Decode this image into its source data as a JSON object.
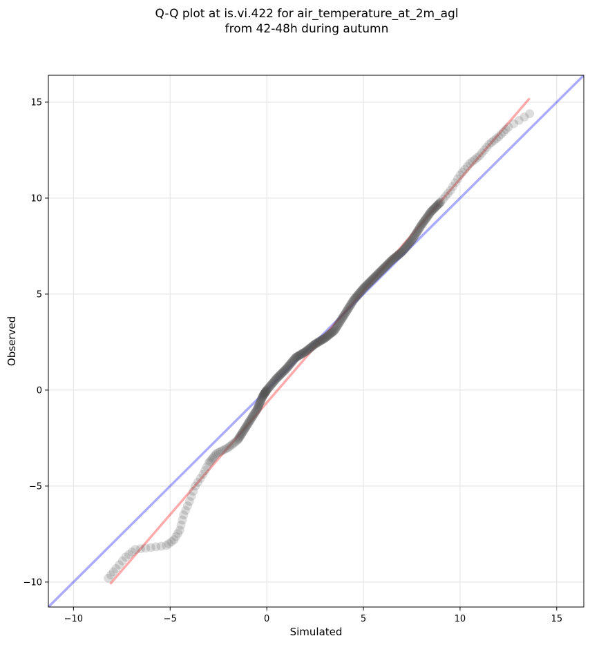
{
  "chart_data": {
    "type": "scatter",
    "title_lines": [
      "Q-Q plot at is.vi.422 for air_temperature_at_2m_agl",
      "from 42-48h during autumn"
    ],
    "xlabel": "Simulated",
    "ylabel": "Observed",
    "xlim": [
      -11.3,
      16.4
    ],
    "ylim": [
      -11.3,
      16.4
    ],
    "xticks": [
      -10,
      -5,
      0,
      5,
      10,
      15
    ],
    "yticks": [
      -10,
      -5,
      0,
      5,
      10,
      15
    ],
    "xtick_labels": [
      "−10",
      "−5",
      "0",
      "5",
      "10",
      "15"
    ],
    "ytick_labels": [
      "−10",
      "−5",
      "0",
      "5",
      "10",
      "15"
    ],
    "grid": true,
    "point_color": "#555555",
    "identity_line": {
      "color": "#0000ff",
      "x": [
        -11.3,
        16.4
      ],
      "y": [
        -11.3,
        16.4
      ]
    },
    "fit_line": {
      "color": "#ff0000",
      "x": [
        -8.1,
        13.6
      ],
      "y": [
        -10.1,
        15.2
      ]
    },
    "quantile_curve": {
      "x": [
        -8.2,
        -7.8,
        -7.3,
        -6.8,
        -6.0,
        -5.2,
        -4.8,
        -4.5,
        -4.3,
        -4.0,
        -3.7,
        -3.3,
        -3.0,
        -2.6,
        -2.0,
        -1.5,
        -1.0,
        -0.5,
        -0.2,
        0.0,
        0.5,
        1.0,
        1.5,
        2.0,
        2.5,
        3.0,
        3.5,
        4.0,
        4.5,
        5.0,
        5.5,
        6.0,
        6.5,
        7.0,
        7.5,
        8.0,
        8.5,
        9.0,
        9.5,
        10.0,
        10.5,
        11.0,
        11.5,
        12.0,
        12.5,
        13.6
      ],
      "y": [
        -9.8,
        -9.3,
        -8.7,
        -8.3,
        -8.2,
        -8.1,
        -7.8,
        -7.3,
        -6.5,
        -5.8,
        -5.0,
        -4.4,
        -3.8,
        -3.3,
        -3.0,
        -2.6,
        -1.8,
        -1.0,
        -0.3,
        0.0,
        0.6,
        1.1,
        1.7,
        2.0,
        2.4,
        2.7,
        3.1,
        3.9,
        4.7,
        5.3,
        5.8,
        6.3,
        6.8,
        7.2,
        7.8,
        8.6,
        9.3,
        9.8,
        10.4,
        11.2,
        11.8,
        12.2,
        12.8,
        13.2,
        13.7,
        14.4
      ]
    }
  }
}
